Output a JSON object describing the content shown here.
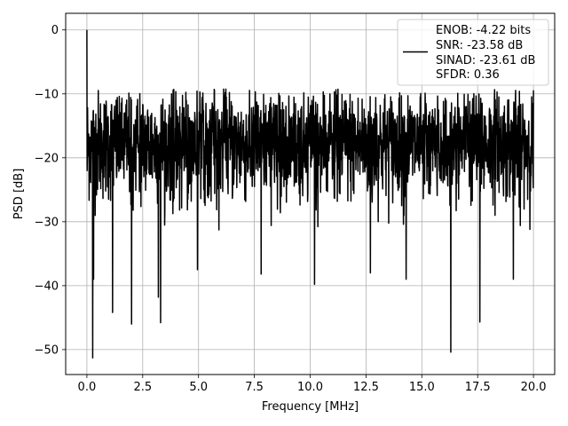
{
  "chart_data": {
    "type": "line",
    "xlabel": "Frequency [MHz]",
    "ylabel": "PSD [dB]",
    "xlim": [
      -0.95,
      20.95
    ],
    "ylim": [
      -53.9,
      2.6
    ],
    "xticks": [
      0.0,
      2.5,
      5.0,
      7.5,
      10.0,
      12.5,
      15.0,
      17.5,
      20.0
    ],
    "xtick_labels": [
      "0.0",
      "2.5",
      "5.0",
      "7.5",
      "10.0",
      "12.5",
      "15.0",
      "17.5",
      "20.0"
    ],
    "yticks": [
      0,
      -10,
      -20,
      -30,
      -40,
      -50
    ],
    "ytick_labels": [
      "0",
      "−10",
      "−20",
      "−30",
      "−40",
      "−50"
    ],
    "grid": true,
    "legend_placement": "upper-right",
    "line_color": "#000000",
    "legend": {
      "lines": [
        "ENOB: -4.22 bits",
        "SNR: -23.58 dB",
        "SINAD: -23.61 dB",
        "SFDR: 0.36"
      ]
    },
    "series": [
      {
        "x_range": [
          0.0,
          20.0
        ],
        "points": 2000,
        "level_db": -18,
        "envelope": [
          -51.3,
          -9.2
        ],
        "peak": {
          "x": 0.0,
          "y": 0.0
        },
        "dips": [
          {
            "x": 0.26,
            "y": -51.3
          },
          {
            "x": 0.3,
            "y": -39.0
          },
          {
            "x": 1.15,
            "y": -44.2
          },
          {
            "x": 2.0,
            "y": -46.0
          },
          {
            "x": 3.2,
            "y": -41.8
          },
          {
            "x": 3.3,
            "y": -45.8
          },
          {
            "x": 4.95,
            "y": -37.5
          },
          {
            "x": 7.8,
            "y": -38.2
          },
          {
            "x": 10.2,
            "y": -39.8
          },
          {
            "x": 12.7,
            "y": -38.0
          },
          {
            "x": 14.3,
            "y": -39.0
          },
          {
            "x": 16.3,
            "y": -50.4
          },
          {
            "x": 17.6,
            "y": -45.7
          },
          {
            "x": 19.1,
            "y": -39.0
          }
        ]
      }
    ]
  }
}
